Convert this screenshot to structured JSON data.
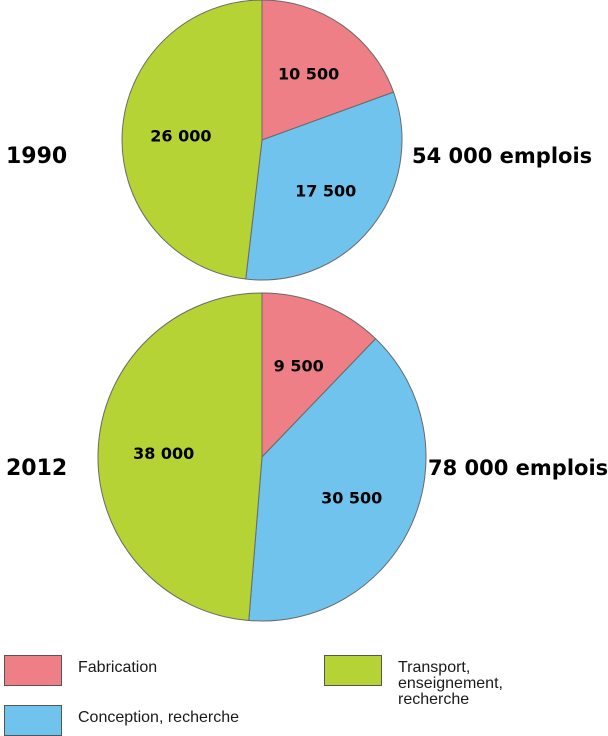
{
  "chart_data": [
    {
      "type": "pie",
      "title": "1990",
      "total_label": "54 000 emplois",
      "slices": [
        {
          "category": "Fabrication",
          "value": 10500,
          "label": "10 500"
        },
        {
          "category": "Conception, recherche",
          "value": 17500,
          "label": "17 500"
        },
        {
          "category": "Transport, enseignement, recherche",
          "value": 26000,
          "label": "26 000"
        }
      ]
    },
    {
      "type": "pie",
      "title": "2012",
      "total_label": "78 000 emplois",
      "slices": [
        {
          "category": "Fabrication",
          "value": 9500,
          "label": "9 500"
        },
        {
          "category": "Conception, recherche",
          "value": 30500,
          "label": "30 500"
        },
        {
          "category": "Transport, enseignement, recherche",
          "value": 38000,
          "label": "38 000"
        }
      ]
    }
  ],
  "legend": [
    {
      "label": "Fabrication",
      "color": "#ee7f86"
    },
    {
      "label": "Transport, enseignement, recherche",
      "color": "#b5d334"
    },
    {
      "label": "Conception, recherche",
      "color": "#6fc3ec"
    }
  ],
  "colors": {
    "Fabrication": "#ee7f86",
    "Conception, recherche": "#6fc3ec",
    "Transport, enseignement, recherche": "#b5d334"
  }
}
